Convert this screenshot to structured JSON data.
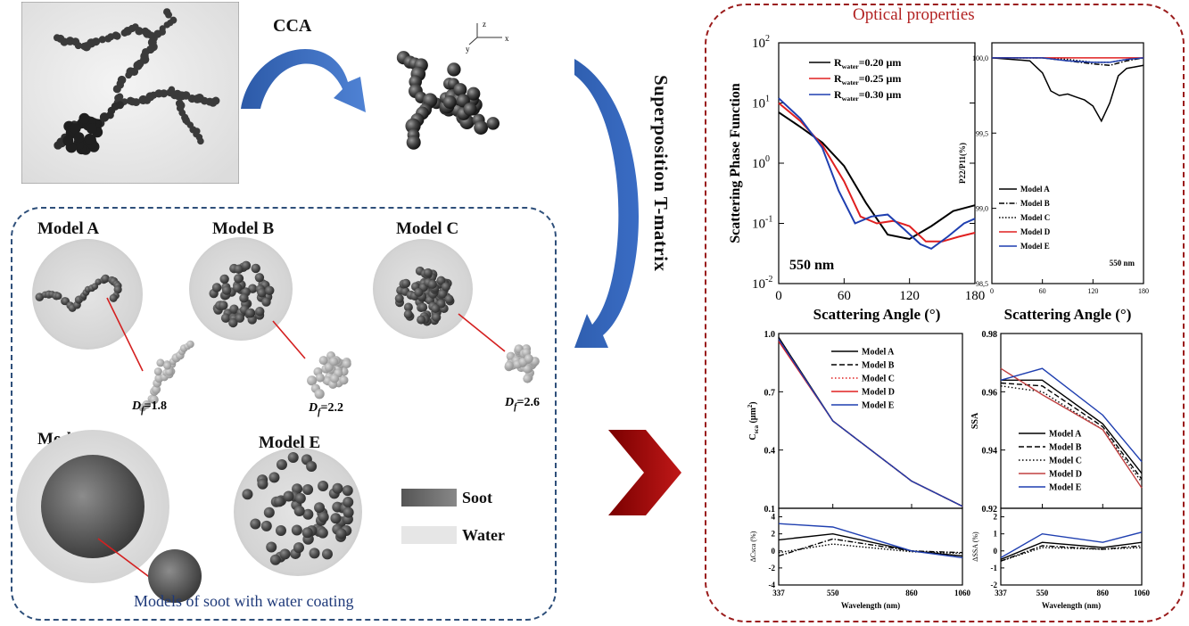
{
  "left": {
    "cca_label": "CCA",
    "superposition_label": "Superposition T-matrix",
    "axes_labels": {
      "z": "z",
      "y": "y",
      "x": "x"
    },
    "models": [
      {
        "name": "Model A",
        "df_label": "D",
        "df_sub": "f",
        "df_value": "=1.8"
      },
      {
        "name": "Model B",
        "df_label": "D",
        "df_sub": "f",
        "df_value": "=2.2"
      },
      {
        "name": "Model C",
        "df_label": "D",
        "df_sub": "f",
        "df_value": "=2.6"
      },
      {
        "name": "Model D"
      },
      {
        "name": "Model E"
      }
    ],
    "legend": {
      "soot": "Soot",
      "water": "Water"
    },
    "caption": "Models of soot with water coating"
  },
  "right": {
    "title": "Optical properties",
    "colors": {
      "frame": "#9a1b1b",
      "title": "#b22222",
      "left_frame": "#2e4f7a",
      "caption": "#1f3a7a"
    }
  },
  "chart_data": [
    {
      "type": "line",
      "title": "",
      "xlabel": "Scattering Angle (°)",
      "ylabel": "Scattering Phase Function",
      "scale": "log",
      "xlim": [
        0,
        180
      ],
      "ylim": [
        0.01,
        100
      ],
      "x_ticks": [
        "0",
        "60",
        "120",
        "180"
      ],
      "y_ticks": [
        "10^2",
        "10^1",
        "10^0",
        "10^-1",
        "10^-2"
      ],
      "annotation": "550 nm",
      "series": [
        {
          "name": "R_water=0.20 μm",
          "legend_main": "R",
          "legend_sub": "water",
          "legend_rest": "=0.20 μm",
          "color": "#000000",
          "x": [
            0,
            20,
            40,
            60,
            80,
            100,
            120,
            140,
            160,
            180
          ],
          "y": [
            7,
            4,
            2.2,
            0.9,
            0.22,
            0.065,
            0.055,
            0.09,
            0.16,
            0.2
          ]
        },
        {
          "name": "R_water=0.25 μm",
          "legend_main": "R",
          "legend_sub": "water",
          "legend_rest": "=0.25 μm",
          "color": "#e02020",
          "x": [
            0,
            20,
            40,
            60,
            75,
            90,
            105,
            120,
            135,
            150,
            165,
            180
          ],
          "y": [
            10,
            5,
            2,
            0.5,
            0.13,
            0.1,
            0.11,
            0.09,
            0.05,
            0.05,
            0.06,
            0.07
          ]
        },
        {
          "name": "R_water=0.30 μm",
          "legend_main": "R",
          "legend_sub": "water",
          "legend_rest": "=0.30 μm",
          "color": "#1f3fb0",
          "x": [
            0,
            20,
            40,
            55,
            70,
            85,
            100,
            115,
            130,
            140,
            155,
            170,
            180
          ],
          "y": [
            12,
            5.5,
            1.8,
            0.35,
            0.1,
            0.13,
            0.14,
            0.08,
            0.045,
            0.038,
            0.06,
            0.1,
            0.12
          ]
        }
      ]
    },
    {
      "type": "line",
      "title": "",
      "xlabel": "Scattering Angle (°)",
      "ylabel": "P22/P11(%)",
      "xlim": [
        0,
        180
      ],
      "ylim": [
        98.5,
        100.1
      ],
      "x_ticks": [
        "0",
        "60",
        "120",
        "180"
      ],
      "y_ticks": [
        "100,0",
        "99,5",
        "99,0",
        "98,5"
      ],
      "annotation": "550 nm",
      "series": [
        {
          "name": "Model A",
          "color": "#000000",
          "dash": "",
          "x": [
            0,
            45,
            60,
            70,
            80,
            90,
            100,
            110,
            120,
            130,
            140,
            150,
            160,
            170,
            180
          ],
          "y": [
            100,
            99.98,
            99.9,
            99.78,
            99.75,
            99.76,
            99.74,
            99.72,
            99.68,
            99.58,
            99.7,
            99.88,
            99.93,
            99.94,
            99.95
          ]
        },
        {
          "name": "Model B",
          "color": "#000000",
          "dash": "6,2,1.5,2",
          "x": [
            0,
            60,
            90,
            120,
            140,
            160,
            180
          ],
          "y": [
            100,
            100,
            99.98,
            99.96,
            99.95,
            99.98,
            100
          ]
        },
        {
          "name": "Model C",
          "color": "#000000",
          "dash": "1.5,2",
          "x": [
            0,
            60,
            90,
            120,
            140,
            160,
            180
          ],
          "y": [
            100,
            100,
            99.99,
            99.97,
            99.97,
            99.99,
            100
          ]
        },
        {
          "name": "Model D",
          "color": "#e02020",
          "dash": "",
          "x": [
            0,
            180
          ],
          "y": [
            100,
            100
          ]
        },
        {
          "name": "Model E",
          "color": "#1f3fb0",
          "dash": "",
          "x": [
            0,
            60,
            90,
            120,
            140,
            160,
            180
          ],
          "y": [
            100,
            100,
            99.98,
            99.97,
            99.97,
            99.99,
            100
          ]
        }
      ]
    },
    {
      "type": "line",
      "title": "",
      "xlabel": "Wavelength (nm)",
      "ylabel": "C_sca (μm^2)",
      "ylabel_main": "C",
      "ylabel_sub": "sca",
      "ylabel_rest": " (μm",
      "ylabel_sup": "2",
      "ylabel_end": ")",
      "x": [
        337,
        550,
        860,
        1060
      ],
      "x_ticks": [
        "337",
        "550",
        "860",
        "1060"
      ],
      "ylim": [
        0.1,
        1.0
      ],
      "y_ticks": [
        "1.0",
        "0.7",
        "0.4",
        "0.1"
      ],
      "series": [
        {
          "name": "Model A",
          "color": "#000000",
          "dash": "",
          "values": [
            0.98,
            0.55,
            0.24,
            0.11
          ]
        },
        {
          "name": "Model B",
          "color": "#000000",
          "dash": "6,3",
          "values": [
            0.97,
            0.55,
            0.24,
            0.11
          ]
        },
        {
          "name": "Model C",
          "color": "#e02020",
          "dash": "1.5,2.5",
          "values": [
            0.97,
            0.55,
            0.24,
            0.11
          ]
        },
        {
          "name": "Model D",
          "color": "#e02020",
          "dash": "",
          "values": [
            0.96,
            0.55,
            0.24,
            0.11
          ]
        },
        {
          "name": "Model E",
          "color": "#1f3fb0",
          "dash": "",
          "values": [
            0.97,
            0.55,
            0.24,
            0.11
          ]
        }
      ],
      "sub": {
        "ylabel": "ΔCsca (%)",
        "ylim": [
          -4,
          5
        ],
        "y_ticks": [
          "4",
          "2",
          "0",
          "-2",
          "-4"
        ],
        "series": [
          {
            "name": "Model A",
            "color": "#000000",
            "dash": "",
            "values": [
              1.3,
              2.0,
              0.0,
              -0.6
            ]
          },
          {
            "name": "Model B",
            "color": "#000000",
            "dash": "6,2,1.5,2",
            "values": [
              -0.6,
              1.4,
              0.0,
              -0.2
            ]
          },
          {
            "name": "Model C",
            "color": "#000000",
            "dash": "1.5,2",
            "values": [
              -0.2,
              0.8,
              -0.1,
              -0.3
            ]
          },
          {
            "name": "Model E",
            "color": "#1f3fb0",
            "dash": "",
            "values": [
              3.2,
              2.8,
              0.0,
              -0.8
            ]
          }
        ]
      }
    },
    {
      "type": "line",
      "title": "",
      "xlabel": "Wavelength (nm)",
      "ylabel": "SSA",
      "x": [
        337,
        550,
        860,
        1060
      ],
      "x_ticks": [
        "337",
        "550",
        "860",
        "1060"
      ],
      "ylim": [
        0.92,
        0.98
      ],
      "y_ticks": [
        "0.98",
        "0.96",
        "0.94",
        "0.92"
      ],
      "series": [
        {
          "name": "Model A",
          "color": "#000000",
          "dash": "",
          "values": [
            0.964,
            0.964,
            0.949,
            0.932
          ]
        },
        {
          "name": "Model B",
          "color": "#000000",
          "dash": "6,3",
          "values": [
            0.963,
            0.962,
            0.948,
            0.93
          ]
        },
        {
          "name": "Model C",
          "color": "#000000",
          "dash": "1.5,2.5",
          "values": [
            0.962,
            0.96,
            0.947,
            0.929
          ]
        },
        {
          "name": "Model D",
          "color": "#c04040",
          "dash": "",
          "values": [
            0.968,
            0.959,
            0.947,
            0.927
          ]
        },
        {
          "name": "Model E",
          "color": "#1f3fb0",
          "dash": "",
          "values": [
            0.964,
            0.968,
            0.952,
            0.936
          ]
        }
      ],
      "sub": {
        "ylabel": "ΔSSA (%)",
        "ylim": [
          -2,
          2.5
        ],
        "y_ticks": [
          "2",
          "1",
          "0",
          "-1",
          "-2"
        ],
        "series": [
          {
            "name": "Model A",
            "color": "#000000",
            "dash": "",
            "values": [
              -0.5,
              0.5,
              0.2,
              0.5
            ]
          },
          {
            "name": "Model B",
            "color": "#000000",
            "dash": "6,2,1.5,2",
            "values": [
              -0.6,
              0.3,
              0.1,
              0.3
            ]
          },
          {
            "name": "Model C",
            "color": "#000000",
            "dash": "1.5,2",
            "values": [
              -0.6,
              0.2,
              0.1,
              0.2
            ]
          },
          {
            "name": "Model E",
            "color": "#1f3fb0",
            "dash": "",
            "values": [
              -0.4,
              1.0,
              0.5,
              1.1
            ]
          }
        ]
      }
    }
  ]
}
